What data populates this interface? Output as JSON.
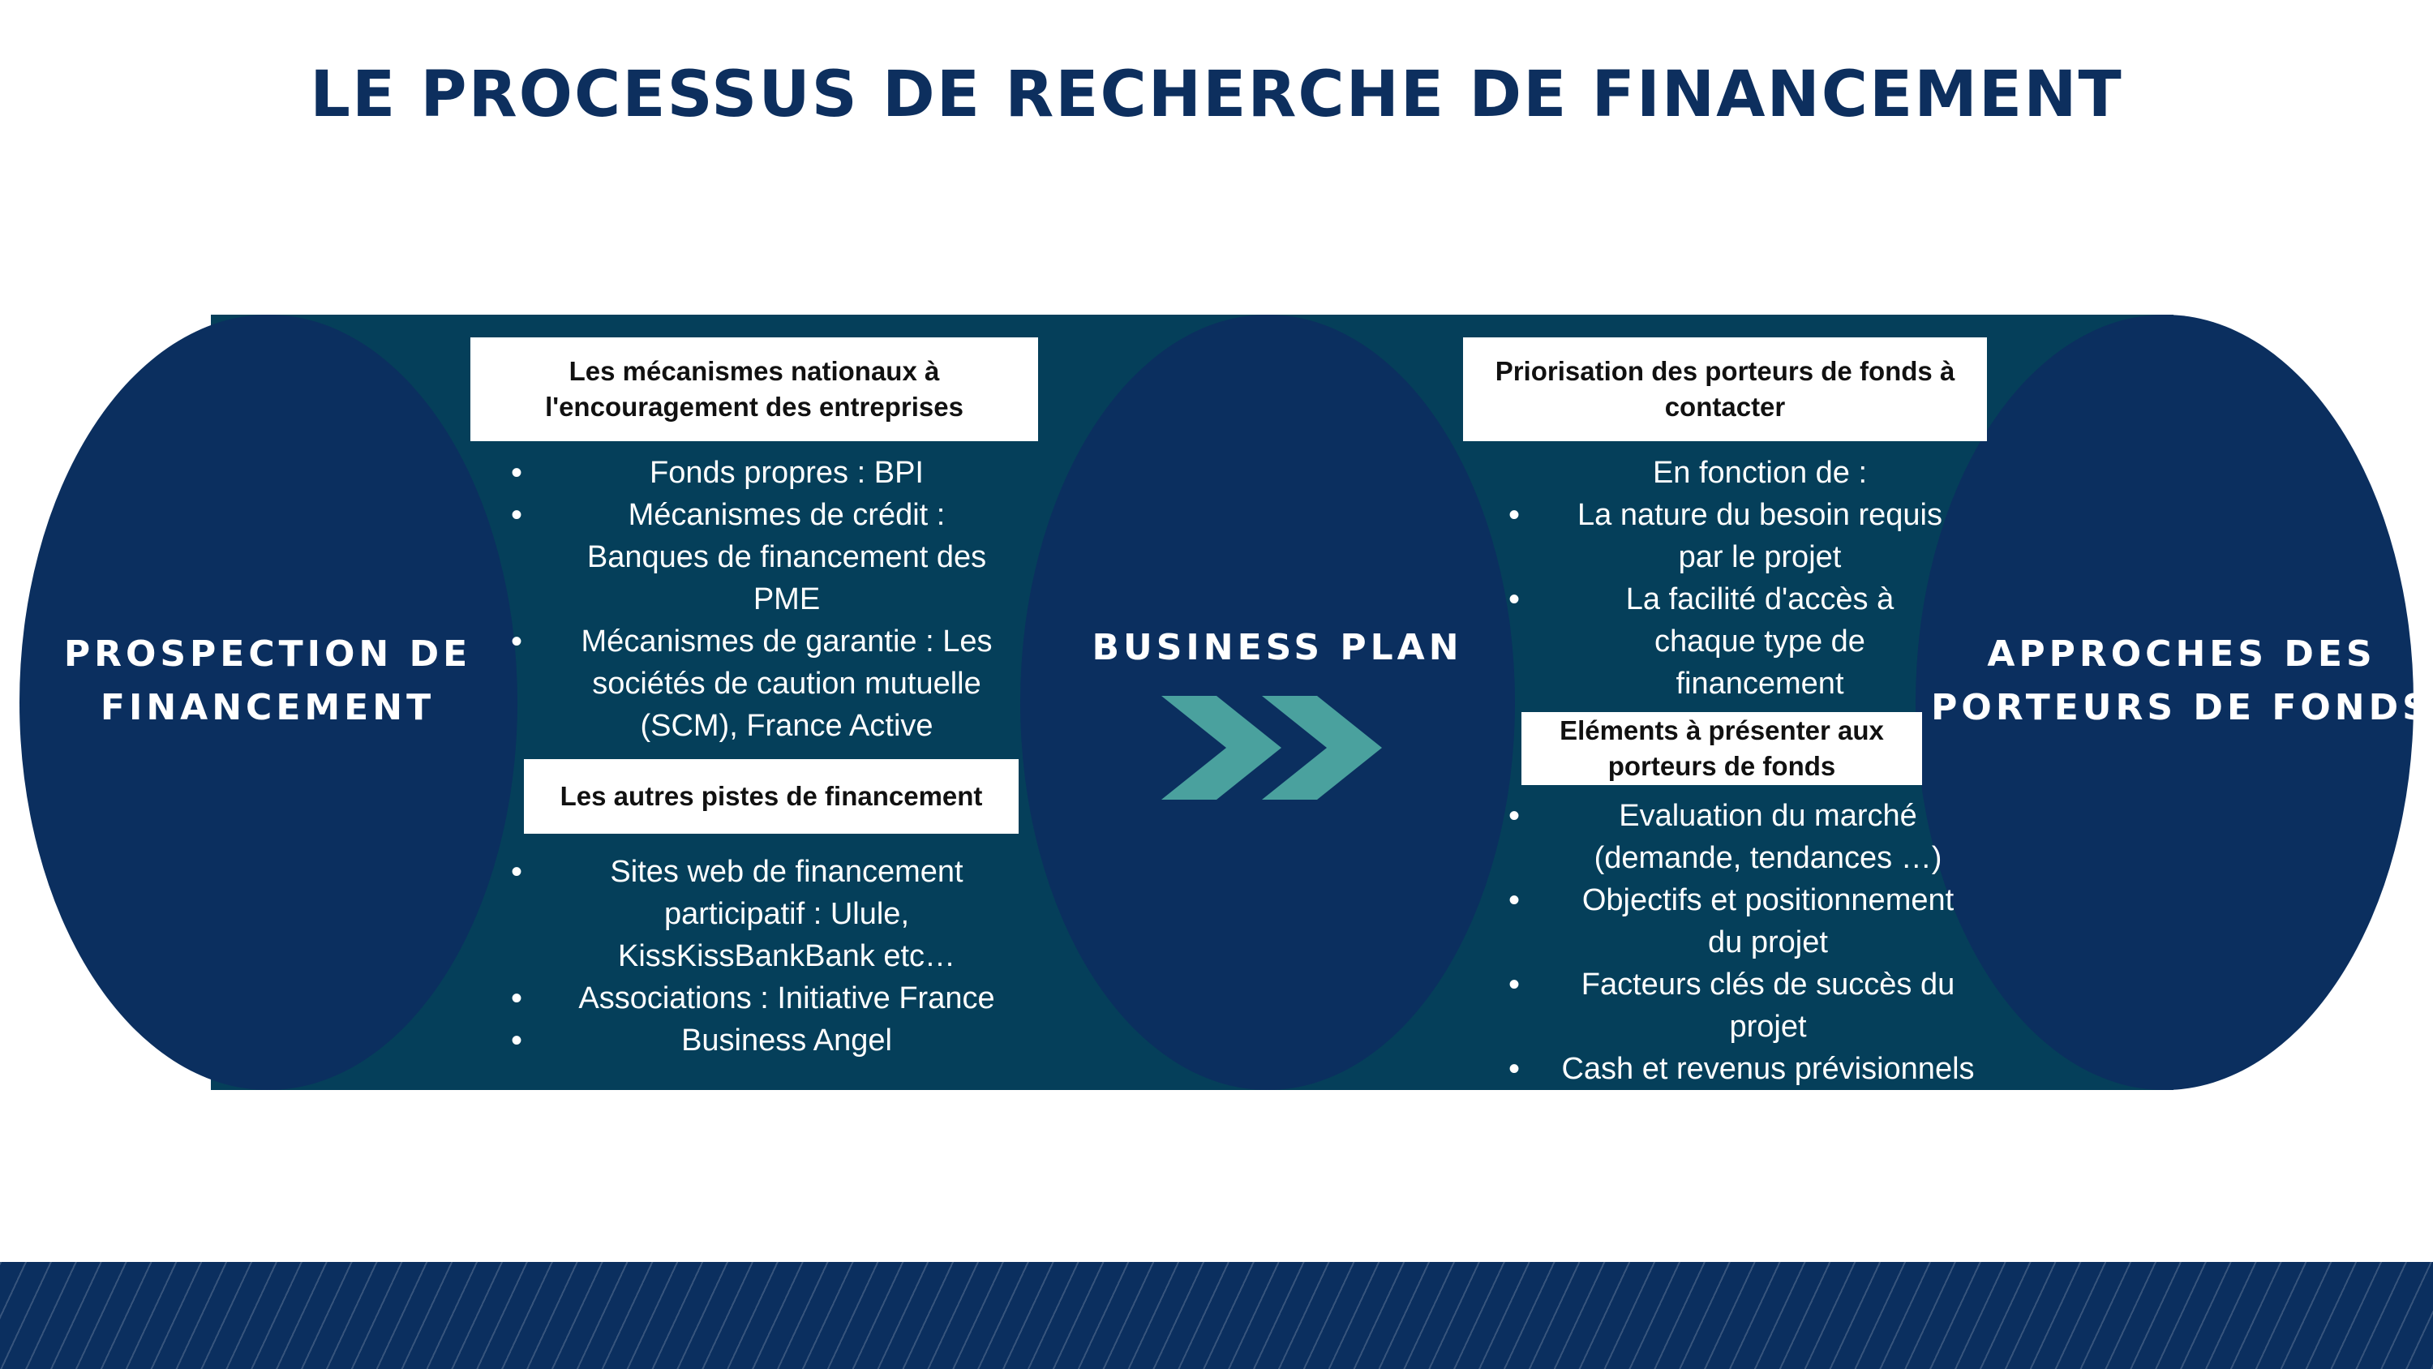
{
  "title": "LE PROCESSUS DE RECHERCHE DE FINANCEMENT",
  "colors": {
    "navy": "#0b2f5f",
    "teal_band": "#053f5a",
    "chevron": "#4aa19e",
    "title": "#0d2f5e"
  },
  "nodes": {
    "left": {
      "line1": "PROSPECTION DE",
      "line2": "FINANCEMENT"
    },
    "middle": {
      "label": "BUSINESS PLAN"
    },
    "right": {
      "line1": "APPROCHES DES",
      "line2": "PORTEURS DE FONDS"
    }
  },
  "prospection": {
    "box_a": {
      "line1": "Les mécanismes nationaux à",
      "line2": "l'encouragement des entreprises"
    },
    "list_a": [
      "Fonds propres : BPI",
      "Mécanismes de crédit :",
      "Banques de financement des",
      "PME",
      "Mécanismes de garantie : Les",
      "sociétés de caution mutuelle",
      "(SCM), France Active"
    ],
    "box_b": "Les autres pistes de financement",
    "list_b": [
      "Sites web de financement",
      "participatif : Ulule,",
      "KissKissBankBank etc…",
      "Associations : Initiative France",
      "Business Angel"
    ]
  },
  "approches": {
    "box_c": {
      "line1": "Priorisation des porteurs de fonds à",
      "line2": "contacter"
    },
    "list_c": [
      "En fonction de :",
      "La nature du besoin requis",
      "par le projet",
      "La facilité d'accès à",
      "chaque type de",
      "financement"
    ],
    "box_d": {
      "line1": "Eléments à présenter aux",
      "line2": "porteurs de fonds"
    },
    "list_d": [
      "Evaluation du marché",
      "(demande, tendances …)",
      "Objectifs et positionnement",
      "du projet",
      "Facteurs clés de succès du",
      "projet",
      "Cash et revenus prévisionnels"
    ]
  }
}
